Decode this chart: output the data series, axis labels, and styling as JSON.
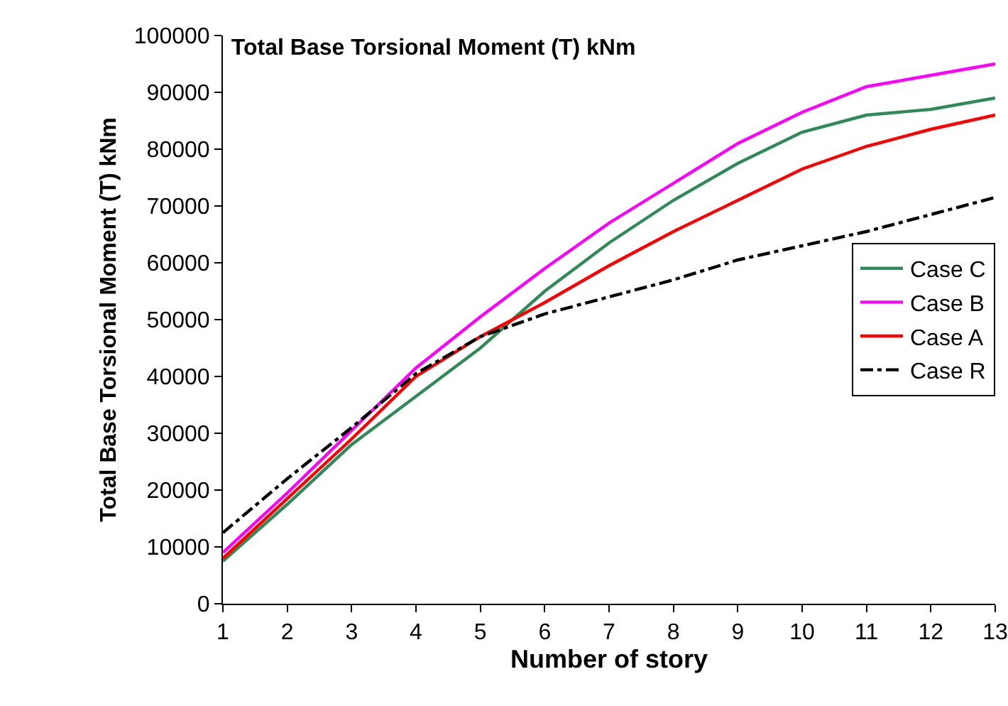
{
  "chart_data": {
    "type": "line",
    "title": "Total Base Torsional Moment (T) kNm",
    "xlabel": "Number of story",
    "ylabel": "Total Base Torsional Moment (T) kNm",
    "x": [
      1,
      2,
      3,
      4,
      5,
      6,
      7,
      8,
      9,
      10,
      11,
      12,
      13
    ],
    "series": [
      {
        "name": "Case C",
        "color": "#2e8b57",
        "values": [
          7500,
          17500,
          28000,
          36500,
          45000,
          55000,
          63500,
          71000,
          77500,
          83000,
          86000,
          87000,
          89000
        ]
      },
      {
        "name": "Case B",
        "color": "#ff00ff",
        "values": [
          9000,
          19500,
          30500,
          41500,
          50500,
          59000,
          67000,
          74000,
          81000,
          86500,
          91000,
          93000,
          95000
        ]
      },
      {
        "name": "Case A",
        "color": "#ff0000",
        "values": [
          8000,
          18500,
          29000,
          40000,
          47000,
          53000,
          59500,
          65500,
          71000,
          76500,
          80500,
          83500,
          86000
        ]
      },
      {
        "name": "Case R",
        "color": "#000000",
        "line_style": "dashdot",
        "values": [
          12500,
          22000,
          31000,
          40500,
          47000,
          51000,
          54000,
          57000,
          60500,
          63000,
          65500,
          68500,
          71500
        ]
      }
    ],
    "xlim": [
      1,
      13
    ],
    "xticks": [
      1,
      2,
      3,
      4,
      5,
      6,
      7,
      8,
      9,
      10,
      11,
      12,
      13
    ],
    "ylim": [
      0,
      100000
    ],
    "yticks": [
      0,
      10000,
      20000,
      30000,
      40000,
      50000,
      60000,
      70000,
      80000,
      90000,
      100000
    ],
    "grid": false,
    "legend": "right",
    "marker": "none"
  }
}
